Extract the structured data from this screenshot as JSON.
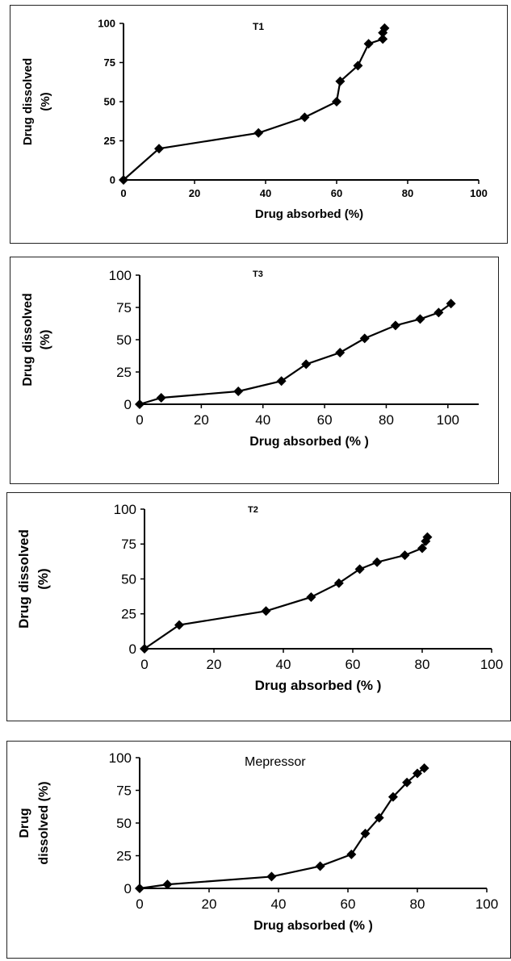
{
  "chart_data": [
    {
      "type": "line",
      "title": "T1",
      "xlabel": "Drug absorbed (%)",
      "ylabel_lines": [
        "Drug dissolved",
        "(%)"
      ],
      "xlim": [
        0,
        100
      ],
      "ylim": [
        0,
        100
      ],
      "xticks": [
        0,
        20,
        40,
        60,
        80,
        100
      ],
      "yticks": [
        0,
        25,
        50,
        75,
        100
      ],
      "x": [
        0,
        10,
        38,
        51,
        60,
        61,
        66,
        69,
        73,
        73,
        73.5
      ],
      "y": [
        0,
        20,
        30,
        40,
        50,
        63,
        73,
        87,
        90,
        94,
        97
      ]
    },
    {
      "type": "line",
      "title": "T3",
      "xlabel": "Drug absorbed (% )",
      "ylabel_lines": [
        "Drug dissolved",
        "(%)"
      ],
      "xlim": [
        0,
        110
      ],
      "ylim": [
        0,
        100
      ],
      "xticks": [
        0,
        20,
        40,
        60,
        80,
        100
      ],
      "yticks": [
        0,
        25,
        50,
        75,
        100
      ],
      "x": [
        0,
        7,
        32,
        46,
        54,
        65,
        73,
        83,
        91,
        97,
        101
      ],
      "y": [
        0,
        5,
        10,
        18,
        31,
        40,
        51,
        61,
        66,
        71,
        78
      ]
    },
    {
      "type": "line",
      "title": "T2",
      "xlabel": "Drug absorbed (% )",
      "ylabel_lines": [
        "Drug dissolved",
        "(%)"
      ],
      "xlim": [
        0,
        100
      ],
      "ylim": [
        0,
        100
      ],
      "xticks": [
        0,
        20,
        40,
        60,
        80,
        100
      ],
      "xtick_labels": [
        "0",
        "20",
        "40",
        "60",
        "80",
        "100"
      ],
      "yticks": [
        0,
        25,
        50,
        75,
        100
      ],
      "x": [
        0,
        10,
        35,
        48,
        56,
        62,
        67,
        75,
        80,
        81,
        81.5
      ],
      "y": [
        0,
        17,
        27,
        37,
        47,
        57,
        62,
        67,
        72,
        77,
        80
      ]
    },
    {
      "type": "line",
      "title": "Mepressor",
      "xlabel": "Drug absorbed (% )",
      "ylabel_lines": [
        "Drug",
        "dissolved (%)"
      ],
      "xlim": [
        0,
        100
      ],
      "ylim": [
        0,
        100
      ],
      "xticks": [
        0,
        20,
        40,
        60,
        80,
        100
      ],
      "yticks": [
        0,
        25,
        50,
        75,
        100
      ],
      "x": [
        0,
        8,
        38,
        52,
        61,
        65,
        69,
        73,
        77,
        80,
        82
      ],
      "y": [
        0,
        3,
        9,
        17,
        26,
        42,
        54,
        70,
        81,
        88,
        92
      ]
    }
  ]
}
